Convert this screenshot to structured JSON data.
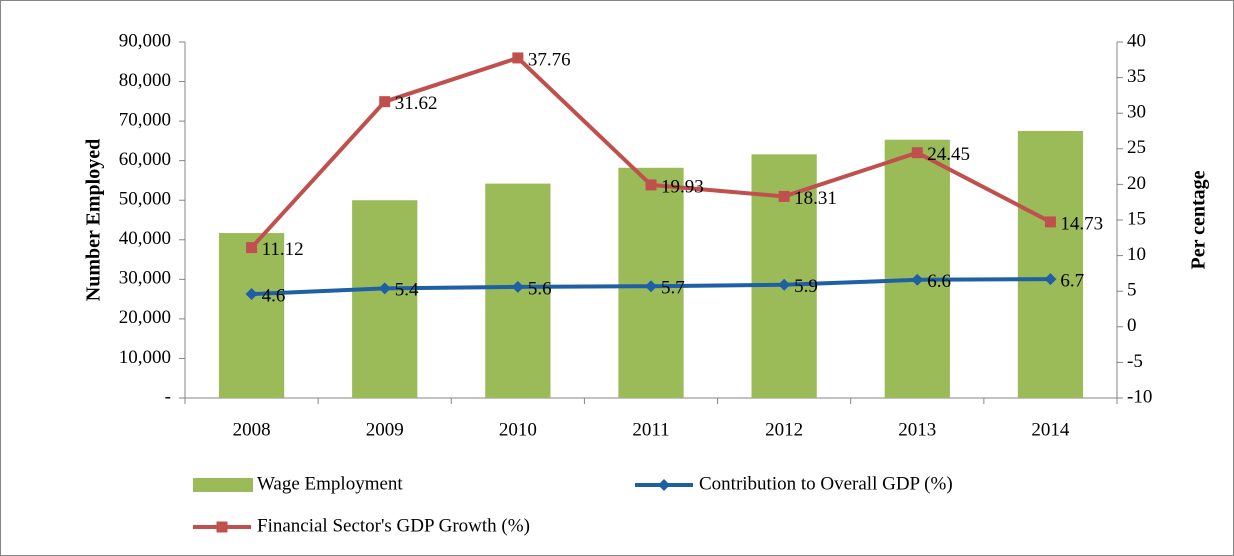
{
  "chart_data": {
    "type": "combo",
    "y_label": "Number Employed",
    "y2_label": "Per centage",
    "categories": [
      "2008",
      "2009",
      "2010",
      "2011",
      "2012",
      "2013",
      "2014"
    ],
    "ylim": [
      0,
      90000
    ],
    "yticks": [
      {
        "value": 0,
        "label": "-"
      },
      {
        "value": 10000,
        "label": "10,000"
      },
      {
        "value": 20000,
        "label": "20,000"
      },
      {
        "value": 30000,
        "label": "30,000"
      },
      {
        "value": 40000,
        "label": "40,000"
      },
      {
        "value": 50000,
        "label": "50,000"
      },
      {
        "value": 60000,
        "label": "60,000"
      },
      {
        "value": 70000,
        "label": "70,000"
      },
      {
        "value": 80000,
        "label": "80,000"
      },
      {
        "value": 90000,
        "label": "90,000"
      }
    ],
    "y2lim": [
      -10,
      40
    ],
    "y2ticks": [
      -10,
      -5,
      0,
      5,
      10,
      15,
      20,
      25,
      30,
      35,
      40
    ],
    "series": [
      {
        "name": "Wage Employment",
        "type": "bar",
        "color": "#9bbb59",
        "values": [
          41700,
          50000,
          54200,
          58200,
          61600,
          65300,
          67500
        ]
      },
      {
        "name": "Contribution to Overall GDP (%)",
        "type": "line",
        "axis": "y2",
        "marker": "diamond",
        "color": "#1f5fa6",
        "values": [
          4.6,
          5.4,
          5.6,
          5.7,
          5.9,
          6.6,
          6.7
        ]
      },
      {
        "name": "Financial Sector's GDP Growth (%)",
        "type": "line",
        "axis": "y2",
        "marker": "square",
        "color": "#c0504d",
        "values": [
          11.12,
          31.62,
          37.76,
          19.93,
          18.31,
          24.45,
          14.73
        ]
      }
    ]
  }
}
